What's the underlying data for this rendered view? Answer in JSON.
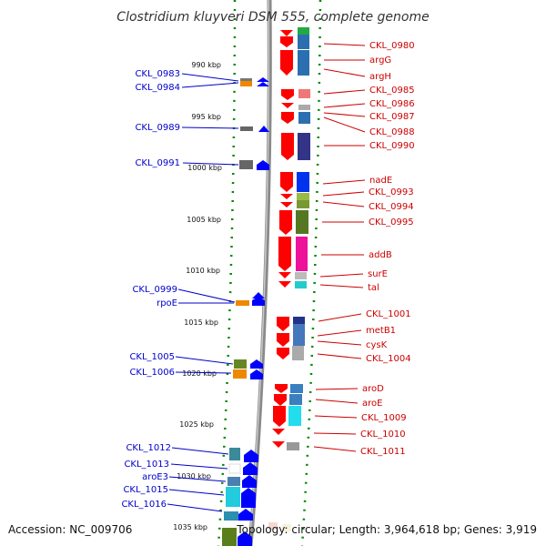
{
  "header": {
    "title": "Clostridium kluyveri DSM 555, complete genome"
  },
  "footer": {
    "accession": "Accession: NC_009706",
    "summary": "Topology: circular; Length: 3,964,618 bp; Genes: 3,919"
  },
  "scale": {
    "ticks": [
      "990 kbp",
      "995 kbp",
      "1000 kbp",
      "1005 kbp",
      "1010 kbp",
      "1015 kbp",
      "1020 kbp",
      "1025 kbp",
      "1030 kbp",
      "1035 kbp"
    ]
  },
  "genes_reverse_strand": [
    "CKL_0983",
    "CKL_0984",
    "CKL_0989",
    "CKL_0991",
    "CKL_0999",
    "rpoE",
    "CKL_1005",
    "CKL_1006",
    "CKL_1012",
    "CKL_1013",
    "aroE3",
    "CKL_1015",
    "CKL_1016"
  ],
  "genes_forward_strand": [
    "CKL_0980",
    "argG",
    "argH",
    "CKL_0985",
    "CKL_0986",
    "CKL_0987",
    "CKL_0988",
    "CKL_0990",
    "nadE",
    "CKL_0993",
    "CKL_0994",
    "CKL_0995",
    "addB",
    "surE",
    "tal",
    "CKL_1001",
    "metB1",
    "cysK",
    "CKL_1004",
    "aroD",
    "aroE",
    "CKL_1009",
    "CKL_1010",
    "CKL_1011"
  ],
  "colors": {
    "reverse_arrow": "#0000ff",
    "forward_arrow": "#ff0000",
    "reverse_label": "#0000cc",
    "forward_label": "#cc0000",
    "backbone": "#888888",
    "tick_dots": "#008800"
  }
}
